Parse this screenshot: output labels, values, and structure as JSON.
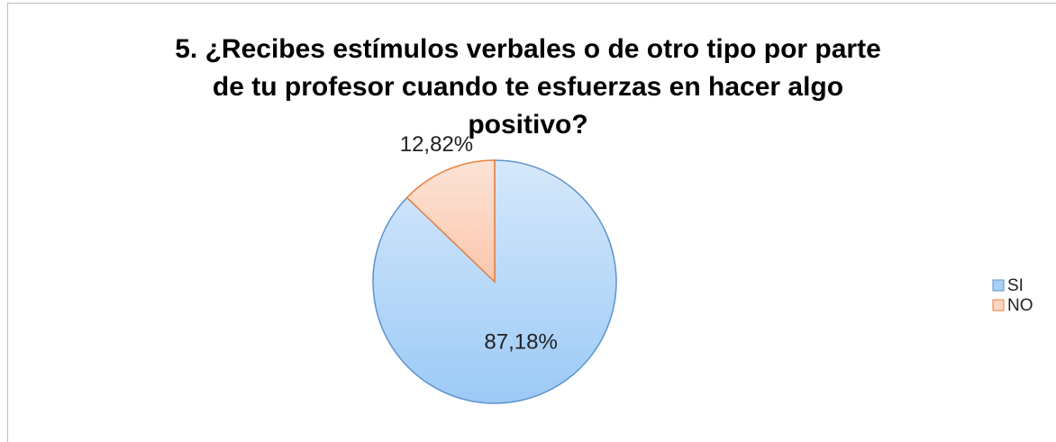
{
  "chart_data": {
    "type": "pie",
    "title": "5. ¿Recibes estímulos verbales o de otro tipo por parte de tu profesor cuando te esfuerzas en hacer algo positivo?",
    "categories": [
      "SI",
      "NO"
    ],
    "values": [
      87.18,
      12.82
    ],
    "value_labels": [
      "87,18%",
      "12,82%"
    ],
    "colors": [
      "#a9d0f7",
      "#fcd5c3"
    ],
    "legend": "right"
  }
}
